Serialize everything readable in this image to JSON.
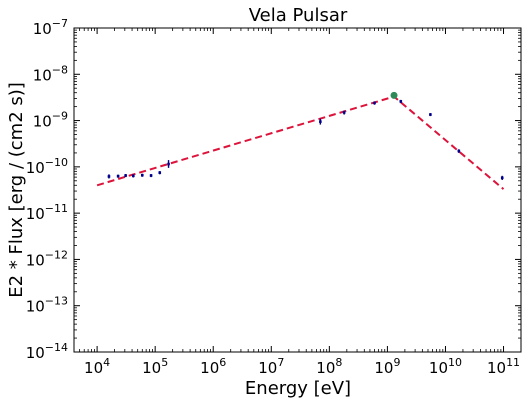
{
  "chart_data": {
    "type": "scatter",
    "title": "Vela Pulsar",
    "xlabel": "Energy [eV]",
    "ylabel": "E2 * Flux [erg / (cm2 s)]",
    "xscale": "log",
    "yscale": "log",
    "xlim": [
      4000,
      200000000000
    ],
    "ylim": [
      1e-14,
      1e-07
    ],
    "x_ticks": [
      {
        "value": 10000,
        "base": "10",
        "exp": "4"
      },
      {
        "value": 100000,
        "base": "10",
        "exp": "5"
      },
      {
        "value": 1000000,
        "base": "10",
        "exp": "6"
      },
      {
        "value": 10000000,
        "base": "10",
        "exp": "7"
      },
      {
        "value": 100000000,
        "base": "10",
        "exp": "8"
      },
      {
        "value": 1000000000,
        "base": "10",
        "exp": "9"
      },
      {
        "value": 10000000000,
        "base": "10",
        "exp": "10"
      },
      {
        "value": 100000000000,
        "base": "10",
        "exp": "11"
      }
    ],
    "y_ticks": [
      {
        "value": 1e-14,
        "base": "10",
        "exp": "−14"
      },
      {
        "value": 1e-13,
        "base": "10",
        "exp": "−13"
      },
      {
        "value": 1e-12,
        "base": "10",
        "exp": "−12"
      },
      {
        "value": 1e-11,
        "base": "10",
        "exp": "−11"
      },
      {
        "value": 1e-10,
        "base": "10",
        "exp": "−10"
      },
      {
        "value": 1e-09,
        "base": "10",
        "exp": "−9"
      },
      {
        "value": 1e-08,
        "base": "10",
        "exp": "−8"
      },
      {
        "value": 1e-07,
        "base": "10",
        "exp": "−7"
      }
    ],
    "colors": {
      "data_points": "#00008b",
      "fit_line": "#dc143c",
      "peak_marker": "#2e8b57"
    },
    "series": [
      {
        "marker": "errorbar",
        "color": "#00008b",
        "points": [
          {
            "x": 16000,
            "y": 6.2e-11,
            "ylo": 5.6e-11,
            "yhi": 6.9e-11
          },
          {
            "x": 23000,
            "y": 6.3e-11,
            "ylo": 5.8e-11,
            "yhi": 6.8e-11
          },
          {
            "x": 31000,
            "y": 6.5e-11,
            "ylo": 6e-11,
            "yhi": 7e-11
          },
          {
            "x": 42000,
            "y": 6.4e-11,
            "ylo": 5.9e-11,
            "yhi": 6.9e-11
          },
          {
            "x": 60000,
            "y": 6.6e-11,
            "ylo": 6.1e-11,
            "yhi": 7.1e-11
          },
          {
            "x": 85000,
            "y": 6.5e-11,
            "ylo": 6e-11,
            "yhi": 7e-11
          },
          {
            "x": 120000,
            "y": 7.5e-11,
            "ylo": 6.9e-11,
            "yhi": 8.1e-11
          },
          {
            "x": 170000,
            "y": 1.15e-10,
            "ylo": 9.5e-11,
            "yhi": 1.4e-10
          },
          {
            "x": 70000000,
            "y": 9.5e-10,
            "ylo": 8.2e-10,
            "yhi": 1.1e-09
          },
          {
            "x": 180000000,
            "y": 1.5e-09,
            "ylo": 1.35e-09,
            "yhi": 1.65e-09
          },
          {
            "x": 600000000,
            "y": 2.4e-09,
            "ylo": 2.2e-09,
            "yhi": 2.6e-09
          },
          {
            "x": 1700000000,
            "y": 2.6e-09,
            "ylo": 2.4e-09,
            "yhi": 2.8e-09
          },
          {
            "x": 5500000000,
            "y": 1.35e-09,
            "ylo": 1.25e-09,
            "yhi": 1.45e-09
          },
          {
            "x": 17000000000,
            "y": 2.2e-10,
            "ylo": 2e-10,
            "yhi": 2.4e-10
          },
          {
            "x": 95000000000,
            "y": 5.8e-11,
            "ylo": 5.2e-11,
            "yhi": 6.4e-11
          }
        ]
      }
    ],
    "fit_line": {
      "style": "dashed",
      "color": "#dc143c",
      "points": [
        {
          "x": 10000,
          "y": 4e-11
        },
        {
          "x": 1300000000,
          "y": 3.3e-09
        },
        {
          "x": 100000000000,
          "y": 3.3e-11
        }
      ]
    },
    "peak_marker": {
      "x": 1300000000,
      "y": 3.5e-09,
      "color": "#2e8b57"
    }
  }
}
